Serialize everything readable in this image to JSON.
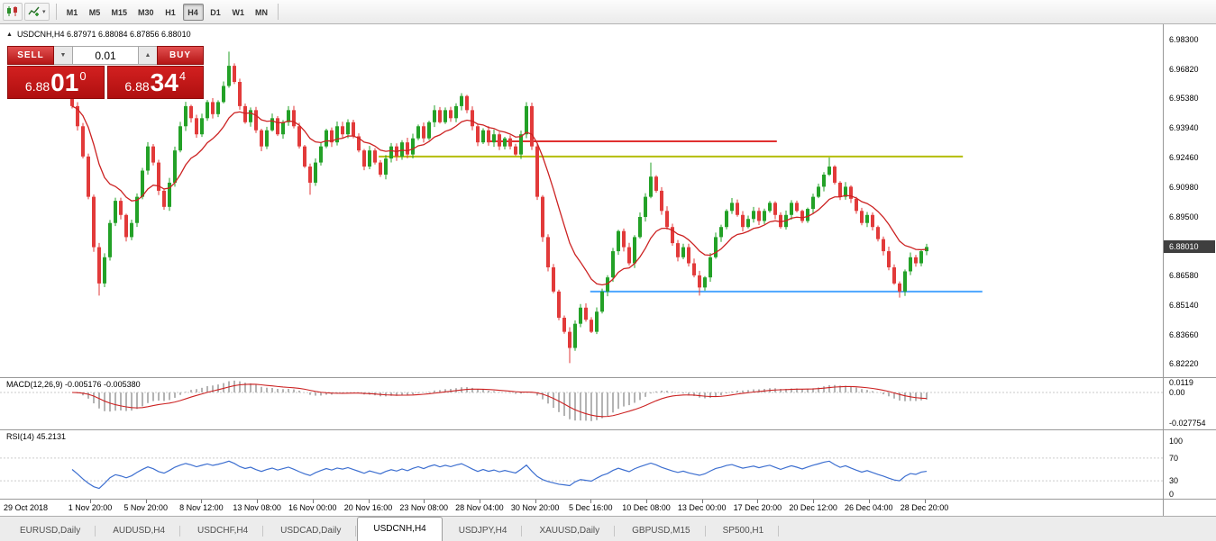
{
  "toolbar": {
    "timeframes": [
      "M1",
      "M5",
      "M15",
      "M30",
      "H1",
      "H4",
      "D1",
      "W1",
      "MN"
    ],
    "active_timeframe": "H4"
  },
  "icons": {
    "panel_toggle": "▲",
    "caret_down": "▾",
    "spin_up": "▲",
    "spin_down": "▼"
  },
  "chart": {
    "header": "USDCNH,H4 6.87971 6.88084 6.87856 6.88010"
  },
  "trade_panel": {
    "sell_label": "SELL",
    "buy_label": "BUY",
    "volume": "0.01",
    "sell_price": {
      "mid": "6.88",
      "big": "01",
      "sup": "0"
    },
    "buy_price": {
      "mid": "6.88",
      "big": "34",
      "sup": "4"
    }
  },
  "price_axis": {
    "ticks": [
      "6.98300",
      "6.96820",
      "6.95380",
      "6.93940",
      "6.92460",
      "6.90980",
      "6.89500",
      "6.86580",
      "6.85140",
      "6.83660",
      "6.82220"
    ],
    "current": "6.88010"
  },
  "time_axis": {
    "labels": [
      "29 Oct 2018",
      "1 Nov 20:00",
      "5 Nov 20:00",
      "8 Nov 12:00",
      "13 Nov 08:00",
      "16 Nov 00:00",
      "20 Nov 16:00",
      "23 Nov 08:00",
      "28 Nov 04:00",
      "30 Nov 20:00",
      "5 Dec 16:00",
      "10 Dec 08:00",
      "13 Dec 00:00",
      "17 Dec 20:00",
      "20 Dec 12:00",
      "26 Dec 04:00",
      "28 Dec 20:00"
    ]
  },
  "macd": {
    "label": "MACD(12,26,9) -0.005176 -0.005380",
    "axis": [
      "0.0119",
      "0.00",
      "-0.027754"
    ]
  },
  "rsi": {
    "label": "RSI(14) 45.2131",
    "axis": [
      "100",
      "70",
      "30",
      "0"
    ]
  },
  "tabs": {
    "items": [
      "EURUSD,Daily",
      "AUDUSD,H4",
      "USDCHF,H4",
      "USDCAD,Daily",
      "USDCNH,H4",
      "USDJPY,H4",
      "XAUUSD,Daily",
      "GBPUSD,M15",
      "SP500,H1"
    ],
    "active": "USDCNH,H4"
  },
  "colors": {
    "bull": "#23a127",
    "bear": "#e23a3a",
    "ma": "#cc2222",
    "macd_hist": "#b4b4b4",
    "macd_signal": "#cc2222",
    "rsi": "#3d6fd0",
    "badge_bg": "#3f3f3f"
  },
  "chart_data": {
    "type": "candlestick",
    "symbol": "USDCNH",
    "timeframe": "H4",
    "axis_top": 6.983,
    "axis_bottom": 6.8222,
    "current_price": 6.8801,
    "first_open": 6.956,
    "closes": [
      6.95,
      6.94,
      6.925,
      6.905,
      6.88,
      6.862,
      6.875,
      6.892,
      6.903,
      6.896,
      6.885,
      6.892,
      6.905,
      6.918,
      6.93,
      6.922,
      6.908,
      6.9,
      6.912,
      6.928,
      6.94,
      6.95,
      6.944,
      6.936,
      6.944,
      6.952,
      6.946,
      6.952,
      6.96,
      6.97,
      6.962,
      6.95,
      6.942,
      6.948,
      6.938,
      6.93,
      6.938,
      6.944,
      6.936,
      6.942,
      6.948,
      6.94,
      6.93,
      6.92,
      6.912,
      6.922,
      6.93,
      6.938,
      6.932,
      6.94,
      6.936,
      6.942,
      6.935,
      6.928,
      6.92,
      6.928,
      6.922,
      6.916,
      6.924,
      6.93,
      6.925,
      6.932,
      6.926,
      6.934,
      6.94,
      6.934,
      6.942,
      6.948,
      6.942,
      6.948,
      6.944,
      6.95,
      6.955,
      6.948,
      6.94,
      6.932,
      6.938,
      6.932,
      6.936,
      6.93,
      6.934,
      6.93,
      6.926,
      6.936,
      6.95,
      6.93,
      6.905,
      6.885,
      6.87,
      6.858,
      6.845,
      6.838,
      6.83,
      6.842,
      6.85,
      6.844,
      6.838,
      6.848,
      6.858,
      6.865,
      6.878,
      6.888,
      6.88,
      6.872,
      6.885,
      6.895,
      6.905,
      6.915,
      6.908,
      6.898,
      6.89,
      6.882,
      6.875,
      6.88,
      6.872,
      6.866,
      6.86,
      6.865,
      6.875,
      6.885,
      6.89,
      6.898,
      6.902,
      6.896,
      6.89,
      6.894,
      6.898,
      6.893,
      6.898,
      6.902,
      6.896,
      6.89,
      6.896,
      6.902,
      6.898,
      6.893,
      6.899,
      6.905,
      6.91,
      6.916,
      6.92,
      6.912,
      6.905,
      6.91,
      6.904,
      6.898,
      6.892,
      6.896,
      6.89,
      6.884,
      6.878,
      6.87,
      6.862,
      6.858,
      6.868,
      6.875,
      6.872,
      6.878,
      6.8801
    ],
    "extra_wicks": {
      "5": {
        "low": 6.856
      },
      "29": {
        "high": 6.977
      },
      "44": {
        "low": 6.906
      },
      "92": {
        "low": 6.8225
      },
      "107": {
        "high": 6.922
      },
      "116": {
        "low": 6.856
      },
      "140": {
        "high": 6.9245
      },
      "153": {
        "low": 6.855
      }
    },
    "trend_lines": [
      {
        "name": "resistance-red",
        "price": 6.9325,
        "i0": 76.7,
        "i1": 130.3,
        "color": "#e03030",
        "width": 2
      },
      {
        "name": "resistance-yellow",
        "price": 6.925,
        "i0": 56.7,
        "i1": 164.7,
        "color": "#b5bd00",
        "width": 2
      },
      {
        "name": "support-blue",
        "price": 6.858,
        "i0": 95.8,
        "i1": 168.3,
        "color": "#4da6ff",
        "width": 2
      }
    ],
    "indicators": {
      "ma_period": 13,
      "macd_params": [
        12,
        26,
        9
      ],
      "macd_values_shown": [
        -0.005176,
        -0.00538
      ],
      "rsi_period": 14,
      "rsi_value_shown": 45.2131
    },
    "ohlc_shown": {
      "open": 6.87971,
      "high": 6.88084,
      "low": 6.87856,
      "close": 6.8801
    }
  }
}
